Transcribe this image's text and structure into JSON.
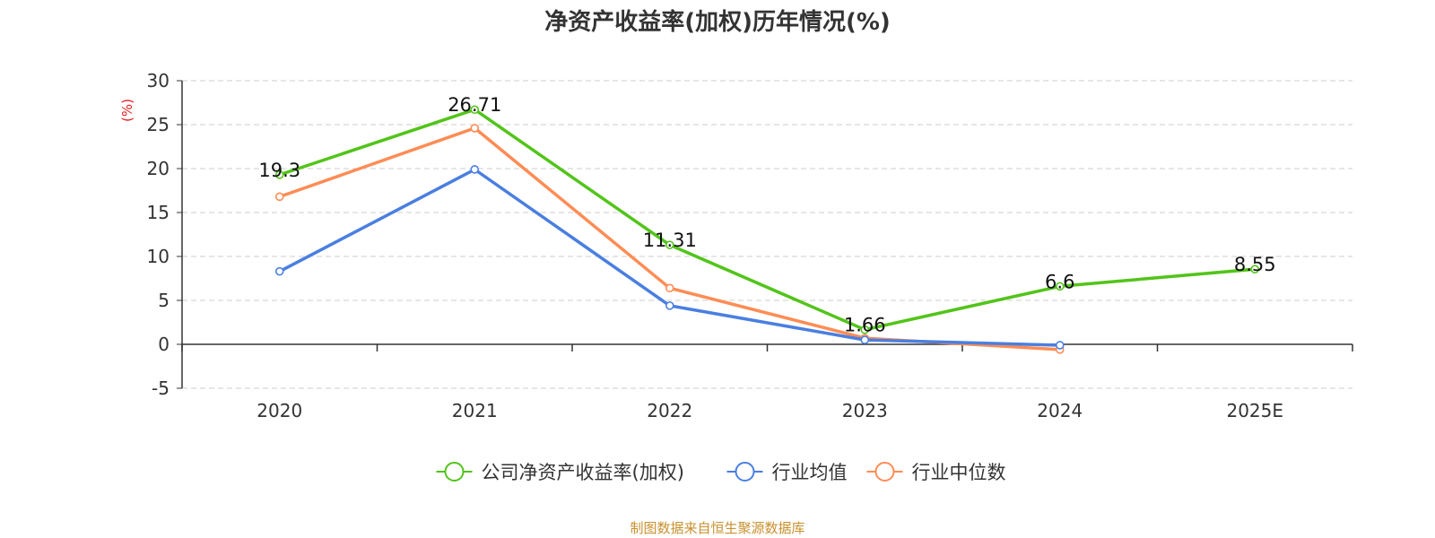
{
  "chart_data": {
    "type": "line",
    "title": "净资产收益率(加权)历年情况(%)",
    "ylabel": "(%)",
    "xlabel": "",
    "categories": [
      "2020",
      "2021",
      "2022",
      "2023",
      "2024",
      "2025E"
    ],
    "ylim": [
      -5,
      30
    ],
    "yticks": [
      -5,
      0,
      5,
      10,
      15,
      20,
      25,
      30
    ],
    "grid": true,
    "legend_position": "bottom",
    "series": [
      {
        "name": "公司净资产收益率(加权)",
        "color": "#52c41a",
        "values": [
          19.3,
          26.71,
          11.31,
          1.66,
          6.6,
          8.55
        ],
        "labels": [
          "19.3",
          "26.71",
          "11.31",
          "1.66",
          "6.6",
          "8.55"
        ]
      },
      {
        "name": "行业均值",
        "color": "#4a7fe0",
        "values": [
          8.3,
          19.9,
          4.4,
          0.5,
          -0.1,
          null
        ]
      },
      {
        "name": "行业中位数",
        "color": "#ff8c55",
        "values": [
          16.8,
          24.6,
          6.4,
          0.7,
          -0.6,
          null
        ]
      }
    ]
  },
  "footer": {
    "source": "制图数据来自恒生聚源数据库"
  }
}
